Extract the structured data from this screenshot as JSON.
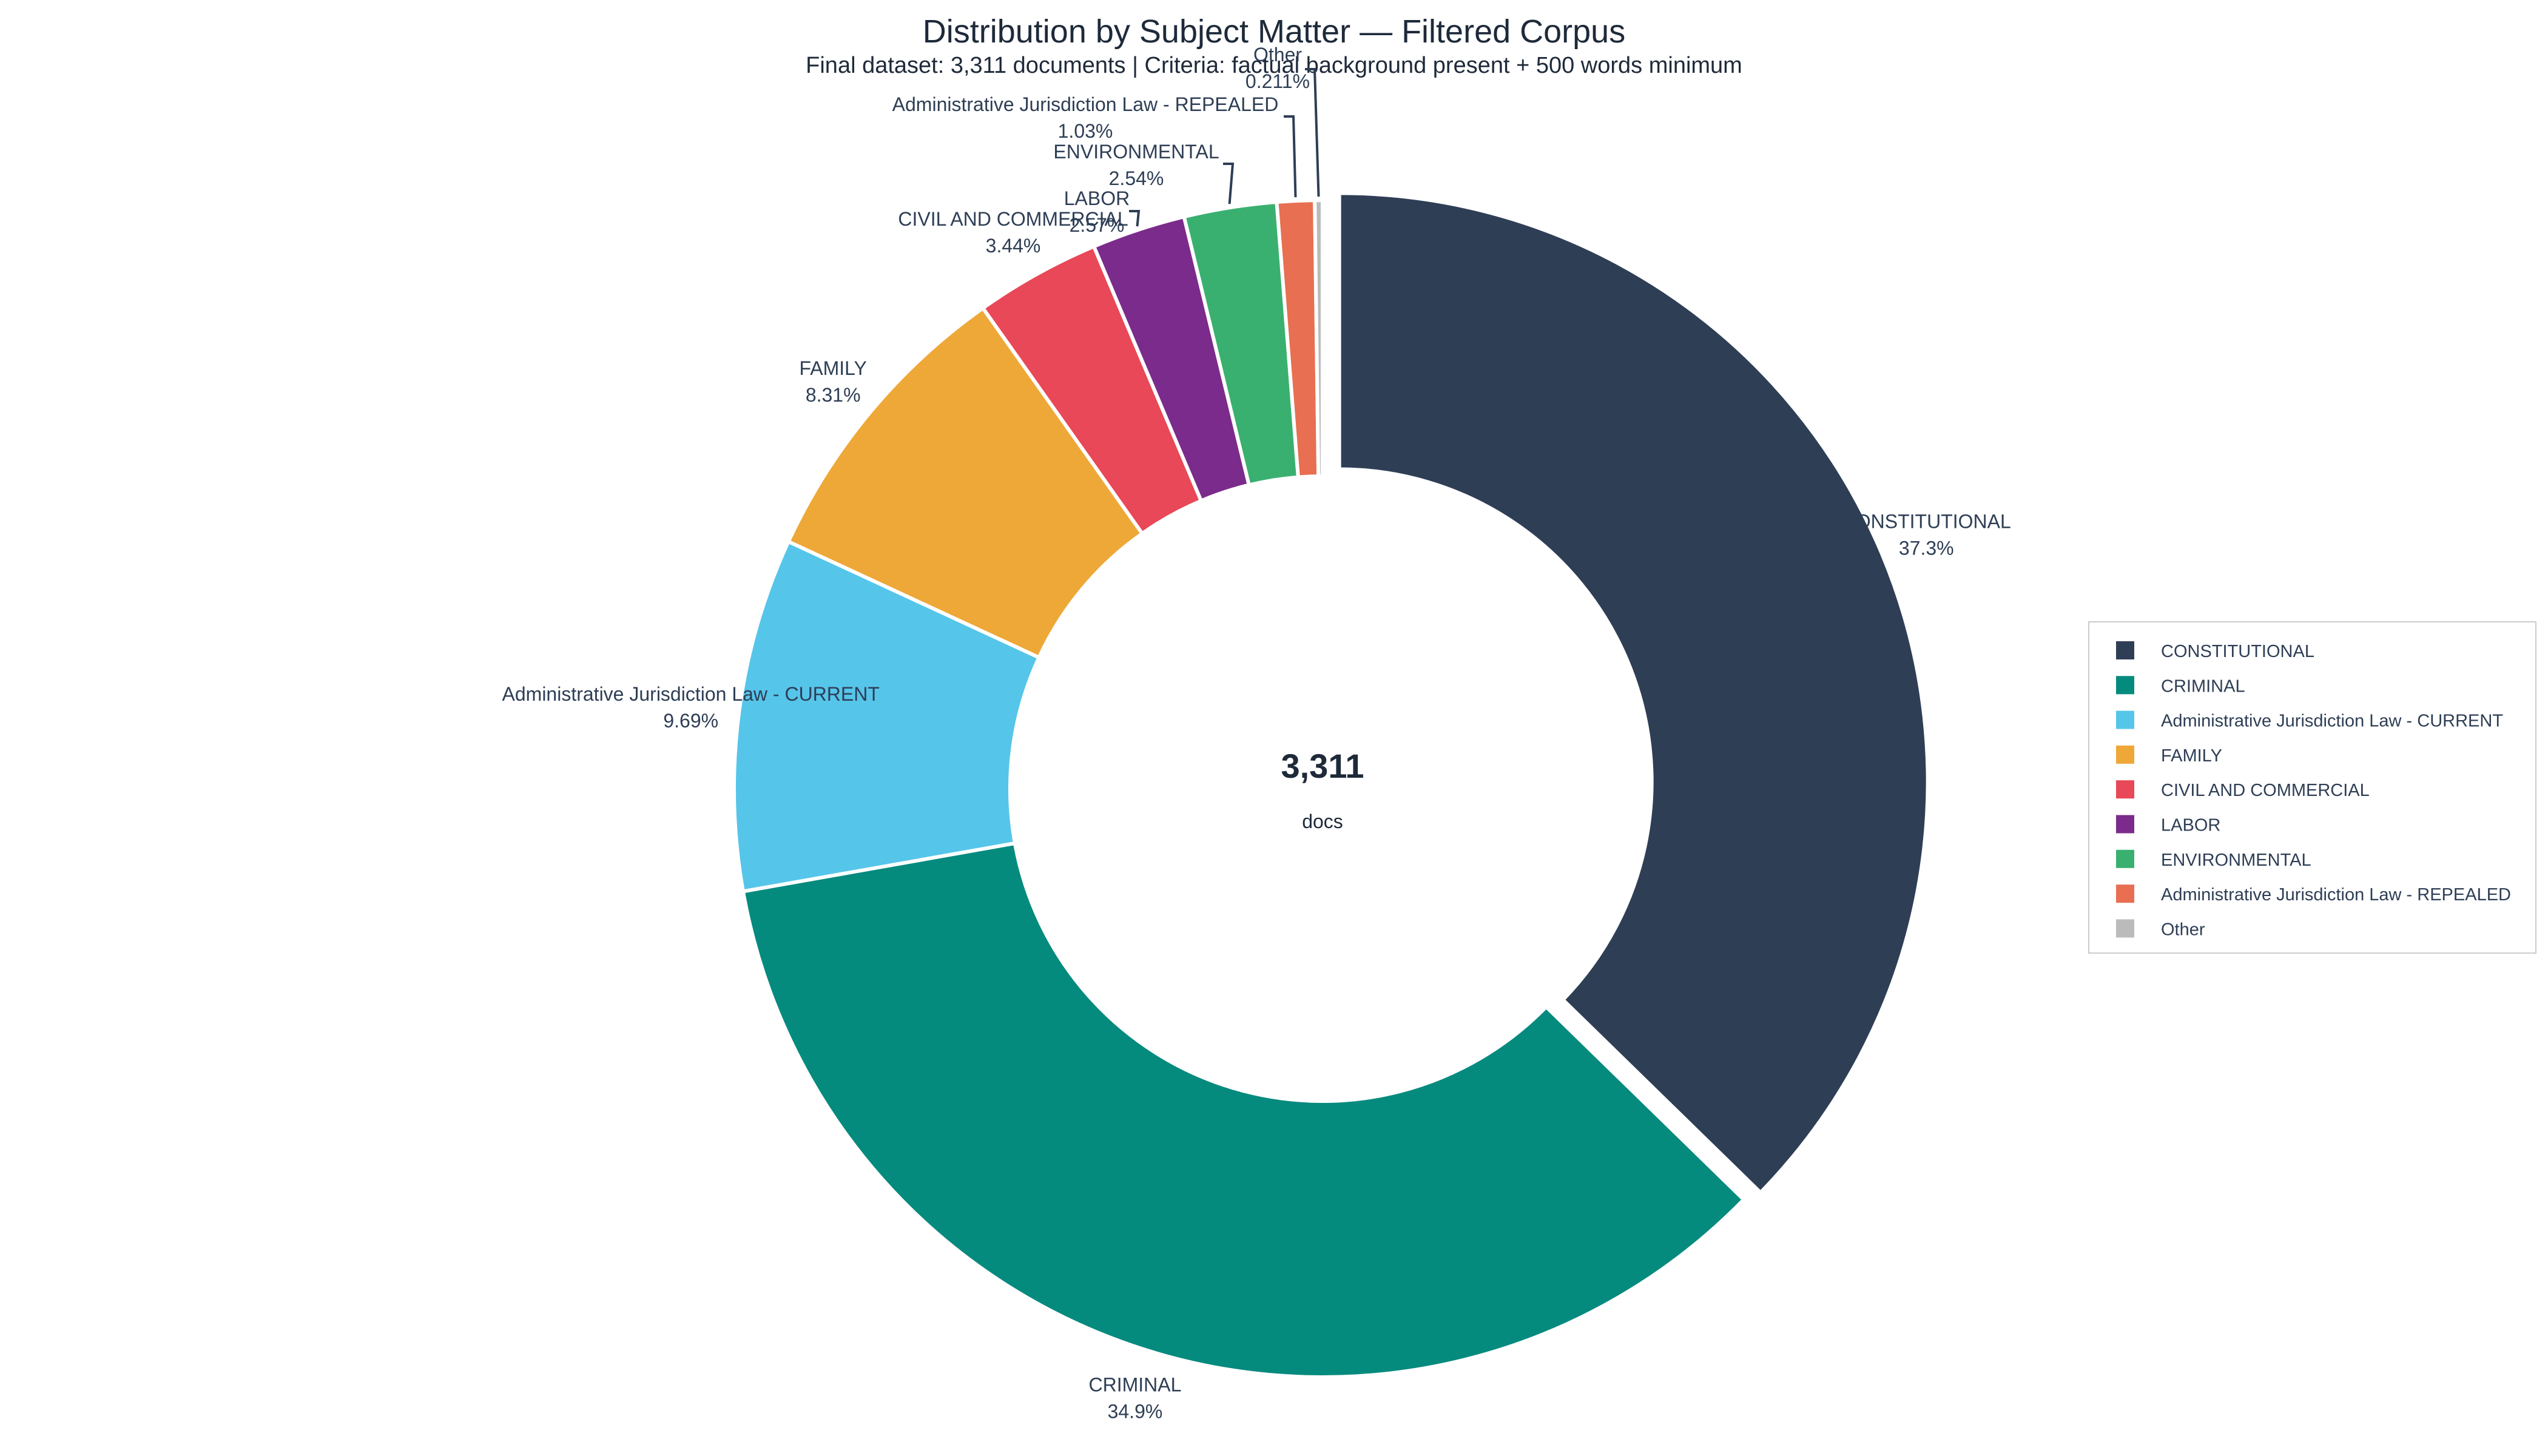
{
  "chart_data": {
    "type": "pie",
    "variant": "donut",
    "title": "Distribution by Subject Matter — Filtered Corpus",
    "subtitle": "Final dataset: 3,311 documents | Criteria: factual background present + 500 words minimum",
    "center_value": "3,311",
    "center_label": "docs",
    "legend_position": "right",
    "exploded_slice": "CONSTITUTIONAL",
    "slices": [
      {
        "name": "CONSTITUTIONAL",
        "percent": 37.3,
        "percent_label": "37.3%",
        "color": "#2e3e55"
      },
      {
        "name": "CRIMINAL",
        "percent": 34.9,
        "percent_label": "34.9%",
        "color": "#058a7e"
      },
      {
        "name": "Administrative Jurisdiction Law - CURRENT",
        "percent": 9.69,
        "percent_label": "9.69%",
        "color": "#56c5ea"
      },
      {
        "name": "FAMILY",
        "percent": 8.31,
        "percent_label": "8.31%",
        "color": "#eea838"
      },
      {
        "name": "CIVIL AND COMMERCIAL",
        "percent": 3.44,
        "percent_label": "3.44%",
        "color": "#e84857"
      },
      {
        "name": "LABOR",
        "percent": 2.57,
        "percent_label": "2.57%",
        "color": "#7b2b8b"
      },
      {
        "name": "ENVIRONMENTAL",
        "percent": 2.54,
        "percent_label": "2.54%",
        "color": "#3ab070"
      },
      {
        "name": "Administrative Jurisdiction Law - REPEALED",
        "percent": 1.03,
        "percent_label": "1.03%",
        "color": "#e86f51"
      },
      {
        "name": "Other",
        "percent": 0.211,
        "percent_label": "0.211%",
        "color": "#bbbbbb"
      }
    ]
  }
}
